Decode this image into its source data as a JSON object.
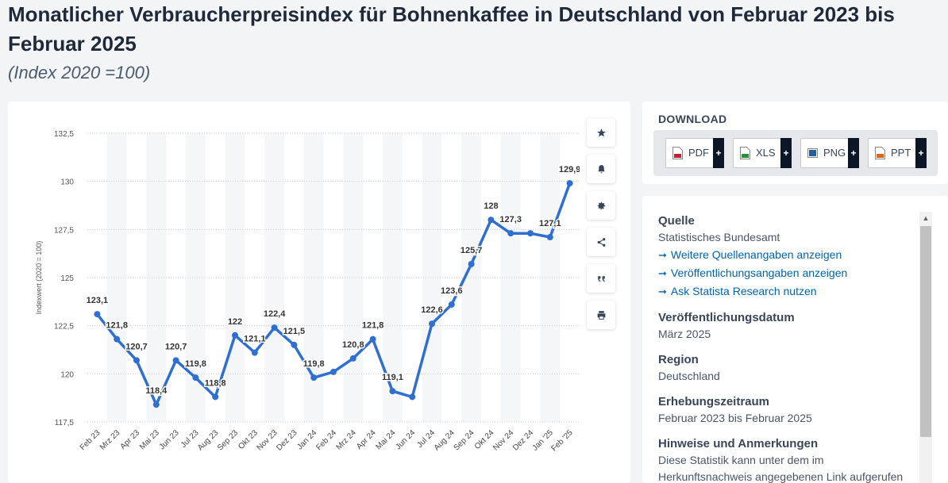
{
  "header": {
    "title": "Monatlicher Verbraucherpreisindex für Bohnenkaffee in Deutschland von Februar 2023 bis Februar 2025",
    "subtitle": "(Index 2020 =100)"
  },
  "chart_data": {
    "type": "line",
    "ylabel": "Indexwert (2020 = 100)",
    "ylim": [
      117.5,
      132.5
    ],
    "yticks": [
      117.5,
      120,
      122.5,
      125,
      127.5,
      130,
      132.5
    ],
    "ytick_labels": [
      "117,5",
      "120",
      "122,5",
      "125",
      "127,5",
      "130",
      "132,5"
    ],
    "grid": true,
    "color": "#2f6fd1",
    "categories": [
      "Feb 23",
      "Mrz 23",
      "Apr 23",
      "Mai 23",
      "Jun 23",
      "Jul 23",
      "Aug 23",
      "Sep 23",
      "Okt 23",
      "Nov 23",
      "Dez 23",
      "Jan 24",
      "Feb 24",
      "Mrz 24",
      "Apr 24",
      "Mai 24",
      "Jun 24",
      "Jul 24",
      "Aug 24",
      "Sep 24",
      "Okt 24",
      "Nov 24",
      "Dez 24",
      "Jan '25",
      "Feb '25"
    ],
    "values": [
      123.1,
      121.8,
      120.7,
      118.4,
      120.7,
      119.8,
      118.8,
      122,
      121.1,
      122.4,
      121.5,
      119.8,
      120.1,
      120.8,
      121.8,
      119.1,
      118.8,
      122.6,
      123.6,
      125.7,
      128,
      127.3,
      127.3,
      127.1,
      129.9
    ],
    "data_labels": [
      "123,1",
      "121,8",
      "120,7",
      "118,4",
      "120,7",
      "119,8",
      "118,8",
      "122",
      "121,1",
      "122,4",
      "121,5",
      "119,8",
      "",
      "120,8",
      "121,8",
      "119,1",
      "",
      "122,6",
      "123,6",
      "125,7",
      "128",
      "127,3",
      "",
      "127,1",
      "129,9"
    ]
  },
  "toolbar": {
    "icons": [
      "star-icon",
      "bell-icon",
      "gear-icon",
      "share-icon",
      "quote-icon",
      "print-icon"
    ]
  },
  "download": {
    "title": "DOWNLOAD",
    "buttons": [
      {
        "label": "PDF",
        "plus": "+",
        "icon_color": "#c8202f"
      },
      {
        "label": "XLS",
        "plus": "+",
        "icon_color": "#2e8b3d"
      },
      {
        "label": "PNG",
        "plus": "+",
        "icon_color": "#1f5fa8"
      },
      {
        "label": "PPT",
        "plus": "+",
        "icon_color": "#d2691e"
      }
    ]
  },
  "info": {
    "source_head": "Quelle",
    "source": "Statistisches Bundesamt",
    "links": [
      "Weitere Quellenangaben anzeigen",
      "Veröffentlichungsangaben anzeigen",
      "Ask Statista Research nutzen"
    ],
    "pubdate_head": "Veröffentlichungsdatum",
    "pubdate": "März 2025",
    "region_head": "Region",
    "region": "Deutschland",
    "period_head": "Erhebungszeitraum",
    "period": "Februar 2023 bis Februar 2025",
    "notes_head": "Hinweise und Anmerkungen",
    "notes": "Diese Statistik kann unter dem im Herkunftsnachweis angegebenen Link aufgerufen"
  }
}
